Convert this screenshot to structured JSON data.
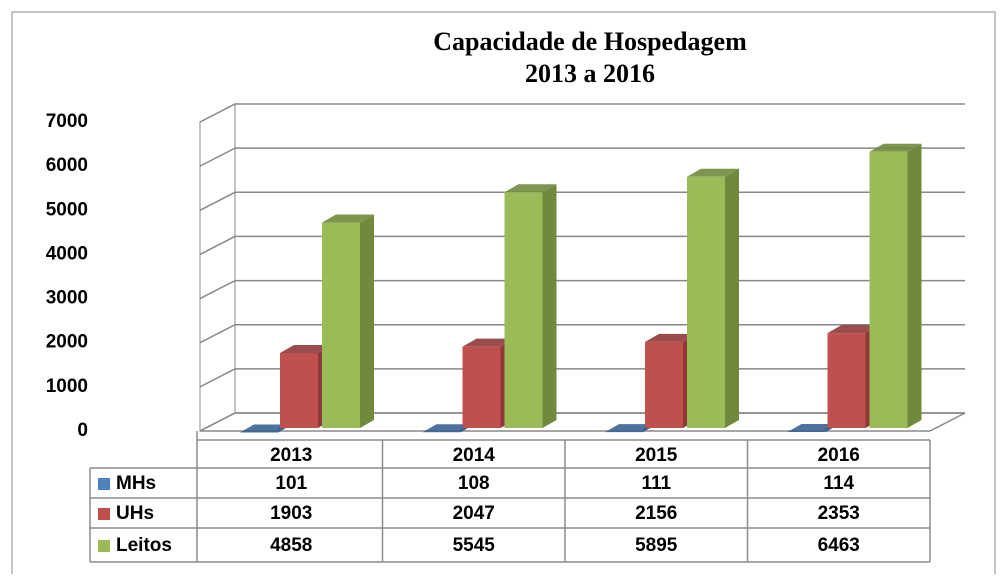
{
  "chart_data": {
    "type": "bar3d",
    "title": "Capacidade de Hospedagem",
    "subtitle": "2013 a 2016",
    "categories": [
      "2013",
      "2014",
      "2015",
      "2016"
    ],
    "series": [
      {
        "name": "MHs",
        "color": "#4f81bd",
        "side": "#3a6393",
        "values": [
          101,
          108,
          111,
          114
        ]
      },
      {
        "name": "UHs",
        "color": "#c0504d",
        "side": "#8f3a38",
        "values": [
          1903,
          2047,
          2156,
          2353
        ]
      },
      {
        "name": "Leitos",
        "color": "#9bbb59",
        "side": "#6f8a3c",
        "values": [
          4858,
          5545,
          5895,
          6463
        ]
      }
    ],
    "ylim": [
      0,
      7000
    ],
    "yticks": [
      0,
      1000,
      2000,
      3000,
      4000,
      5000,
      6000,
      7000
    ],
    "grid": true,
    "data_table": true
  }
}
